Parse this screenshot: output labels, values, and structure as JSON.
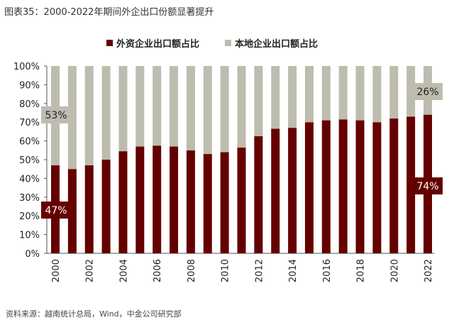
{
  "title": "图表35：2000-2022年期间外企出口份额显著提升",
  "source": "资料来源：越南统计总局，Wind，中金公司研究部",
  "chart_data": {
    "type": "bar",
    "stacked": true,
    "categories": [
      "2000",
      "2001",
      "2002",
      "2003",
      "2004",
      "2005",
      "2006",
      "2007",
      "2008",
      "2009",
      "2010",
      "2011",
      "2012",
      "2013",
      "2014",
      "2015",
      "2016",
      "2017",
      "2018",
      "2019",
      "2020",
      "2021",
      "2022"
    ],
    "x_tick_labels": [
      "2000",
      "2002",
      "2004",
      "2006",
      "2008",
      "2010",
      "2012",
      "2014",
      "2016",
      "2018",
      "2020",
      "2022"
    ],
    "series": [
      {
        "name": "外资企业出口额占比",
        "color": "#650000",
        "values": [
          47,
          45,
          47,
          50,
          54.5,
          57,
          57.5,
          57,
          55,
          53,
          54,
          56.5,
          62.5,
          66.5,
          67,
          70,
          71,
          71.5,
          71,
          70,
          72,
          73,
          74
        ]
      },
      {
        "name": "本地企业出口额占比",
        "color": "#bdbcaf",
        "values": [
          53,
          55,
          53,
          50,
          45.5,
          43,
          42.5,
          43,
          45,
          47,
          46,
          43.5,
          37.5,
          33.5,
          33,
          30,
          29,
          28.5,
          29,
          30,
          28,
          27,
          26
        ]
      }
    ],
    "ylim": [
      0,
      100
    ],
    "y_tick_labels": [
      "0%",
      "10%",
      "20%",
      "30%",
      "40%",
      "50%",
      "60%",
      "70%",
      "80%",
      "90%",
      "100%"
    ],
    "legend_position": "top",
    "annotations": [
      "53%",
      "47%",
      "26%",
      "74%"
    ],
    "grid": false
  }
}
